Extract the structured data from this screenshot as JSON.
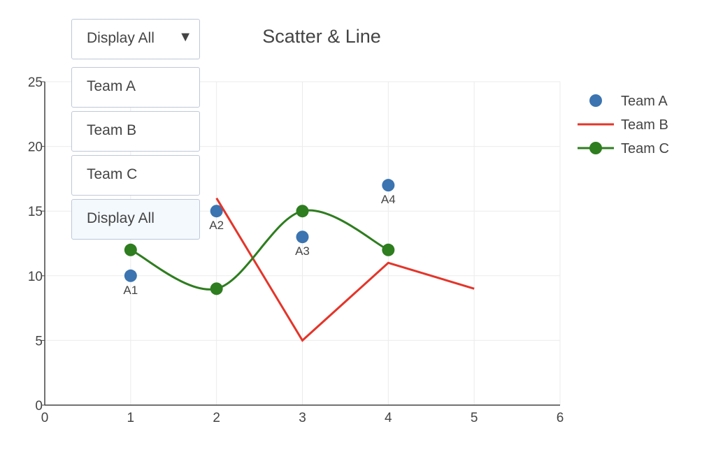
{
  "dropdown": {
    "selected": "Display All",
    "arrow_icon": "▼",
    "options": [
      "Team A",
      "Team B",
      "Team C",
      "Display All"
    ],
    "active_option": "Display All"
  },
  "chart_data": {
    "type": "line",
    "title": "Scatter & Line",
    "xlabel": "",
    "ylabel": "",
    "xlim": [
      0,
      6
    ],
    "ylim": [
      0,
      25
    ],
    "xticks": [
      0,
      1,
      2,
      3,
      4,
      5,
      6
    ],
    "yticks": [
      0,
      5,
      10,
      15,
      20,
      25
    ],
    "grid": true,
    "legend": "top-right",
    "series": [
      {
        "name": "Team A",
        "mode": "markers",
        "color": "#3b74b0",
        "x": [
          1,
          2,
          3,
          4
        ],
        "y": [
          10,
          15,
          13,
          17
        ],
        "labels": [
          "A1",
          "A2",
          "A3",
          "A4"
        ]
      },
      {
        "name": "Team B",
        "mode": "lines",
        "color": "#e4352a",
        "x": [
          2,
          3,
          4,
          5
        ],
        "y": [
          16,
          5,
          11,
          9
        ]
      },
      {
        "name": "Team C",
        "mode": "lines+markers",
        "shape": "spline",
        "color": "#2e7d1f",
        "x": [
          1,
          2,
          3,
          4
        ],
        "y": [
          12,
          9,
          15,
          12
        ]
      }
    ]
  }
}
